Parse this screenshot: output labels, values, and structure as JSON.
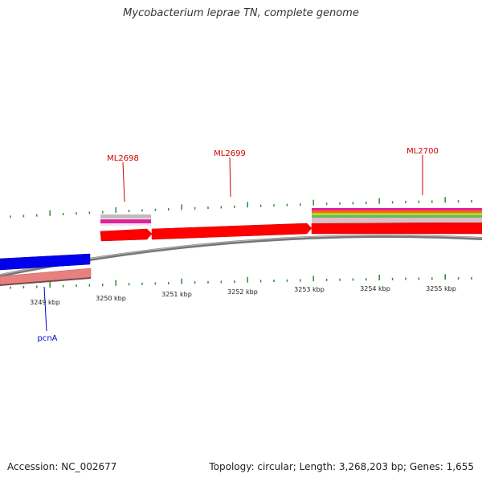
{
  "title": "Mycobacterium leprae TN, complete genome",
  "footer": {
    "accession": "Accession: NC_002677",
    "summary": "Topology: circular; Length: 3,268,203 bp; Genes: 1,655"
  },
  "colors": {
    "backbone": "#888888",
    "tick": "#2e8b2e",
    "forward_cds": "#ff0000",
    "reverse_cds": "#0000ee",
    "reverse_pseudo": "#e87a7a",
    "forward_label": "#cc0000",
    "reverse_label": "#0000cc"
  },
  "genes": [
    {
      "name": "ML2698",
      "color": "#cc0000"
    },
    {
      "name": "ML2699",
      "color": "#cc0000"
    },
    {
      "name": "ML2700",
      "color": "#cc0000"
    },
    {
      "name": "pcnA",
      "color": "#0000cc"
    }
  ],
  "kbp_labels": [
    "3249 kbp",
    "3250 kbp",
    "3251 kbp",
    "3252 kbp",
    "3253 kbp",
    "3254 kbp",
    "3255 kbp"
  ]
}
